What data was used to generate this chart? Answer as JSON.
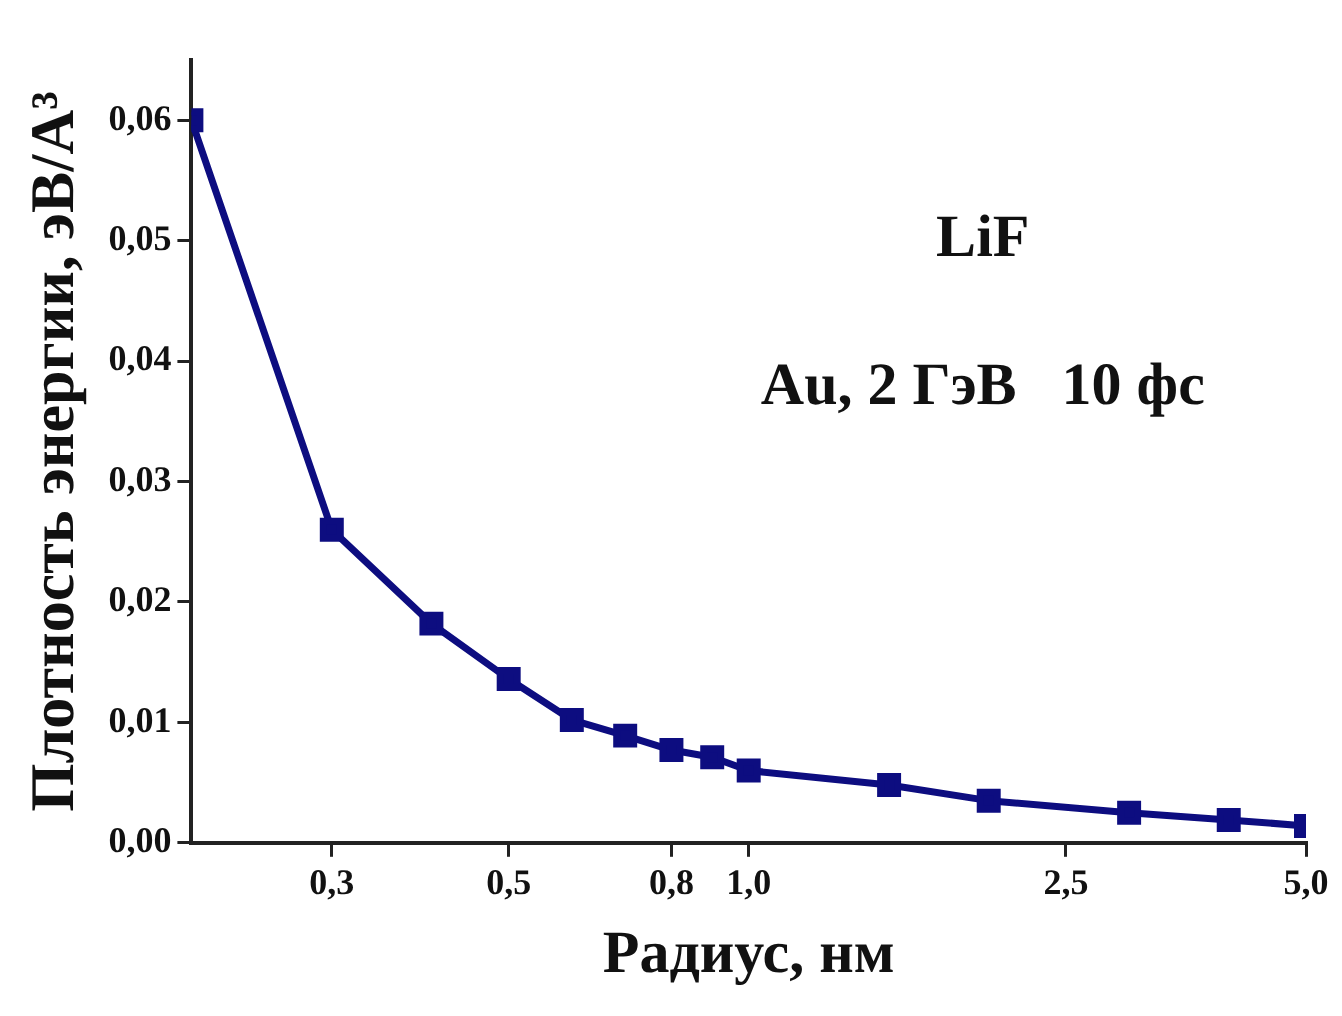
{
  "chart_data": {
    "type": "line",
    "xlabel": "Радиус, нм",
    "ylabel": "Плотность энергии, эВ/А³",
    "annotations": [
      "LiF",
      "Au, 2 ГэВ   10 фс"
    ],
    "log": "x",
    "xlim": [
      0.2,
      5
    ],
    "xticks": [
      {
        "value": 0.3,
        "label": "0,3"
      },
      {
        "value": 0.5,
        "label": "0,5"
      },
      {
        "value": 0.8,
        "label": "0,8"
      },
      {
        "value": 1,
        "label": "1,0"
      },
      {
        "value": 2.5,
        "label": "2,5"
      },
      {
        "value": 5,
        "label": "5,0"
      }
    ],
    "ylim": [
      0,
      0.065
    ],
    "yticks": [
      {
        "value": 0,
        "label": "0,00"
      },
      {
        "value": 0.01,
        "label": "0,01"
      },
      {
        "value": 0.02,
        "label": "0,02"
      },
      {
        "value": 0.03,
        "label": "0,03"
      },
      {
        "value": 0.04,
        "label": "0,04"
      },
      {
        "value": 0.05,
        "label": "0,05"
      },
      {
        "value": 0.06,
        "label": "0,06"
      }
    ],
    "x": [
      0.2,
      0.3,
      0.4,
      0.5,
      0.6,
      0.7,
      0.8,
      0.9,
      1.0,
      1.5,
      2,
      3,
      4,
      5
    ],
    "series": [
      {
        "color": "#0d0d80",
        "values": [
          0.06,
          0.026,
          0.0182,
          0.0136,
          0.0102,
          0.0089,
          0.0077,
          0.0071,
          0.006,
          0.0048,
          0.0035,
          0.0025,
          0.0019,
          0.0014
        ]
      }
    ],
    "marker": "square",
    "line_style": "solid",
    "grid": false,
    "legend": false
  }
}
